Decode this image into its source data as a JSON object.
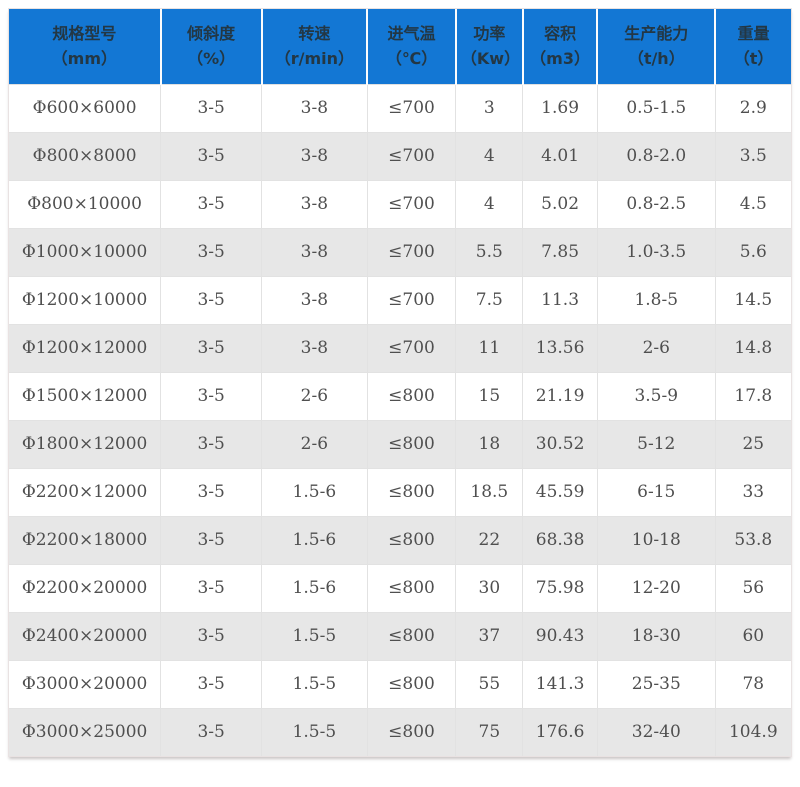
{
  "colors": {
    "header_bg": "#1377d4",
    "header_text": "#233744",
    "row_alt_bg": "#e7e7e7",
    "body_text": "#4f4f4f",
    "cell_border": "#e2e2e2"
  },
  "chart_data": {
    "type": "table",
    "title": "",
    "columns": [
      {
        "label": "规格型号",
        "unit": "（mm）"
      },
      {
        "label": "倾斜度",
        "unit": "（%）"
      },
      {
        "label": "转速",
        "unit": "（r/min）"
      },
      {
        "label": "进气温",
        "unit": "（℃）"
      },
      {
        "label": "功率",
        "unit": "（Kw）"
      },
      {
        "label": "容积",
        "unit": "（m3）"
      },
      {
        "label": "生产能力",
        "unit": "（t/h）"
      },
      {
        "label": "重量",
        "unit": "（t）"
      }
    ],
    "rows": [
      [
        "Φ600×6000",
        "3-5",
        "3-8",
        "≤700",
        "3",
        "1.69",
        "0.5-1.5",
        "2.9"
      ],
      [
        "Φ800×8000",
        "3-5",
        "3-8",
        "≤700",
        "4",
        "4.01",
        "0.8-2.0",
        "3.5"
      ],
      [
        "Φ800×10000",
        "3-5",
        "3-8",
        "≤700",
        "4",
        "5.02",
        "0.8-2.5",
        "4.5"
      ],
      [
        "Φ1000×10000",
        "3-5",
        "3-8",
        "≤700",
        "5.5",
        "7.85",
        "1.0-3.5",
        "5.6"
      ],
      [
        "Φ1200×10000",
        "3-5",
        "3-8",
        "≤700",
        "7.5",
        "11.3",
        "1.8-5",
        "14.5"
      ],
      [
        "Φ1200×12000",
        "3-5",
        "3-8",
        "≤700",
        "11",
        "13.56",
        "2-6",
        "14.8"
      ],
      [
        "Φ1500×12000",
        "3-5",
        "2-6",
        "≤800",
        "15",
        "21.19",
        "3.5-9",
        "17.8"
      ],
      [
        "Φ1800×12000",
        "3-5",
        "2-6",
        "≤800",
        "18",
        "30.52",
        "5-12",
        "25"
      ],
      [
        "Φ2200×12000",
        "3-5",
        "1.5-6",
        "≤800",
        "18.5",
        "45.59",
        "6-15",
        "33"
      ],
      [
        "Φ2200×18000",
        "3-5",
        "1.5-6",
        "≤800",
        "22",
        "68.38",
        "10-18",
        "53.8"
      ],
      [
        "Φ2200×20000",
        "3-5",
        "1.5-6",
        "≤800",
        "30",
        "75.98",
        "12-20",
        "56"
      ],
      [
        "Φ2400×20000",
        "3-5",
        "1.5-5",
        "≤800",
        "37",
        "90.43",
        "18-30",
        "60"
      ],
      [
        "Φ3000×20000",
        "3-5",
        "1.5-5",
        "≤800",
        "55",
        "141.3",
        "25-35",
        "78"
      ],
      [
        "Φ3000×25000",
        "3-5",
        "1.5-5",
        "≤800",
        "75",
        "176.6",
        "32-40",
        "104.9"
      ]
    ]
  }
}
